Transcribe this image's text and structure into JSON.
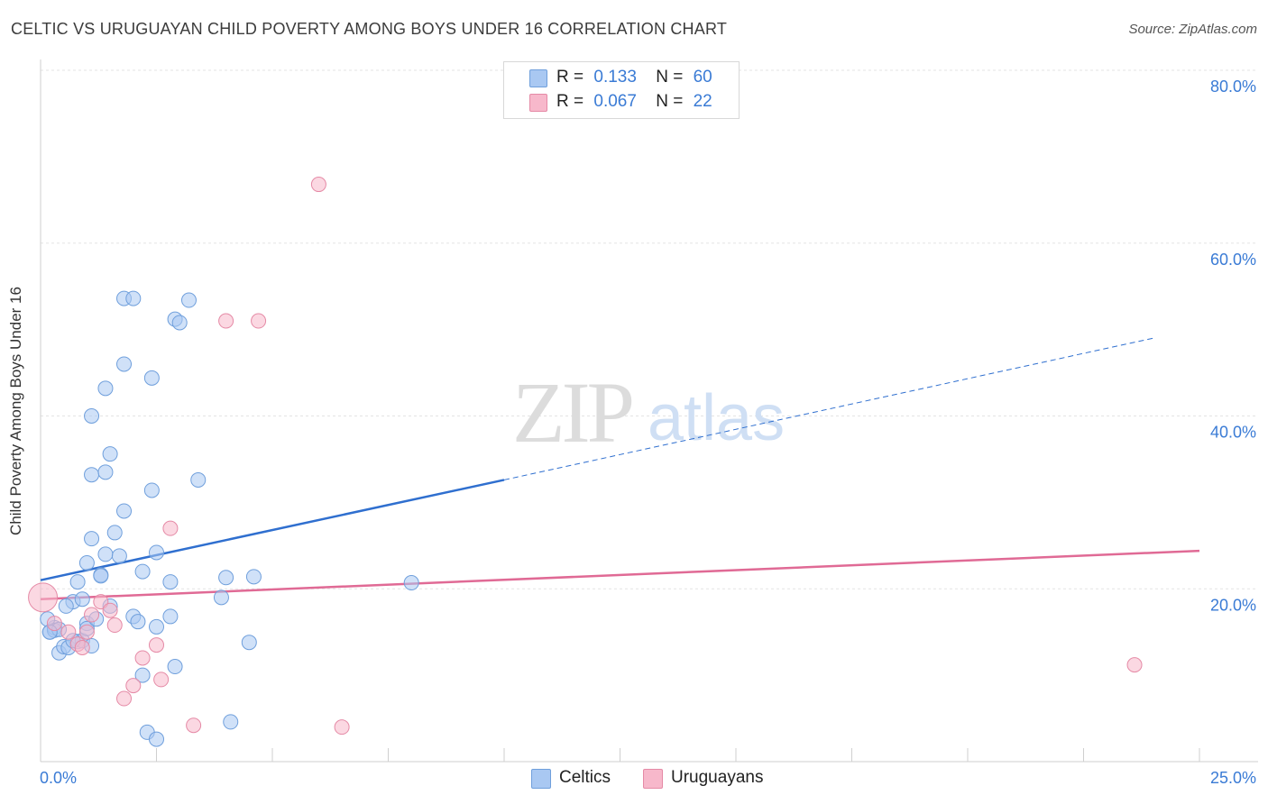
{
  "title": "CELTIC VS URUGUAYAN CHILD POVERTY AMONG BOYS UNDER 16 CORRELATION CHART",
  "source": "Source: ZipAtlas.com",
  "watermark": {
    "zip": "ZIP",
    "atlas": "atlas"
  },
  "legend": {
    "rows": [
      {
        "r_label": "R =",
        "r_value": "0.133",
        "n_label": "N =",
        "n_value": "60",
        "color": "#a9c8f2"
      },
      {
        "r_label": "R =",
        "r_value": "0.067",
        "n_label": "N =",
        "n_value": "22",
        "color": "#f7b8cb"
      }
    ]
  },
  "bottom_legend": [
    {
      "label": "Celtics",
      "color": "#a9c8f2"
    },
    {
      "label": "Uruguayans",
      "color": "#f7b8cb"
    }
  ],
  "chart_data": {
    "type": "scatter",
    "title": "CELTIC VS URUGUAYAN CHILD POVERTY AMONG BOYS UNDER 16 CORRELATION CHART",
    "xlabel": "",
    "ylabel": "Child Poverty Among Boys Under 16",
    "xlim": [
      0,
      25
    ],
    "ylim": [
      0,
      80
    ],
    "x_tick_labels": [
      "0.0%",
      "25.0%"
    ],
    "y_tick_labels": [
      "20.0%",
      "40.0%",
      "60.0%",
      "80.0%"
    ],
    "y_ticks": [
      20,
      40,
      60,
      80
    ],
    "grid": true,
    "series": [
      {
        "name": "Celtics",
        "color": "#a9c8f2",
        "stroke": "#6f9fdc",
        "r": 0.133,
        "n": 60,
        "trend": {
          "x_start": 0,
          "y_start": 21.0,
          "x_solid_end": 10.0,
          "y_solid_end": 32.6,
          "x_end": 24.0,
          "y_end": 49.0,
          "color": "#2f6fcf"
        },
        "points": [
          [
            0.2,
            15.0
          ],
          [
            0.3,
            15.5
          ],
          [
            0.3,
            15.2
          ],
          [
            0.4,
            12.6
          ],
          [
            0.5,
            13.3
          ],
          [
            0.4,
            15.3
          ],
          [
            0.6,
            13.2
          ],
          [
            0.7,
            18.5
          ],
          [
            0.8,
            13.9
          ],
          [
            0.9,
            14.0
          ],
          [
            1.0,
            16.0
          ],
          [
            1.0,
            15.4
          ],
          [
            1.1,
            13.4
          ],
          [
            1.2,
            16.5
          ],
          [
            0.9,
            18.8
          ],
          [
            1.3,
            21.6
          ],
          [
            0.8,
            20.8
          ],
          [
            1.0,
            23.0
          ],
          [
            1.1,
            25.8
          ],
          [
            1.3,
            21.5
          ],
          [
            1.4,
            24.0
          ],
          [
            1.5,
            18.0
          ],
          [
            1.6,
            26.5
          ],
          [
            1.7,
            23.8
          ],
          [
            1.8,
            29.0
          ],
          [
            1.1,
            33.2
          ],
          [
            1.4,
            33.5
          ],
          [
            1.5,
            35.6
          ],
          [
            1.1,
            40.0
          ],
          [
            1.4,
            43.2
          ],
          [
            1.8,
            46.0
          ],
          [
            2.4,
            44.4
          ],
          [
            1.8,
            53.6
          ],
          [
            2.0,
            53.6
          ],
          [
            2.9,
            51.2
          ],
          [
            3.0,
            50.8
          ],
          [
            3.2,
            53.4
          ],
          [
            2.2,
            22.0
          ],
          [
            2.4,
            31.4
          ],
          [
            2.5,
            24.2
          ],
          [
            2.0,
            16.8
          ],
          [
            2.1,
            16.2
          ],
          [
            2.5,
            15.6
          ],
          [
            2.8,
            16.8
          ],
          [
            2.8,
            20.8
          ],
          [
            2.2,
            10.0
          ],
          [
            2.9,
            11.0
          ],
          [
            2.3,
            3.4
          ],
          [
            2.5,
            2.6
          ],
          [
            3.4,
            32.6
          ],
          [
            3.9,
            19.0
          ],
          [
            4.0,
            21.3
          ],
          [
            4.1,
            4.6
          ],
          [
            4.5,
            13.8
          ],
          [
            4.6,
            21.4
          ],
          [
            8.0,
            20.7
          ],
          [
            0.15,
            16.5
          ],
          [
            0.2,
            15.0
          ],
          [
            0.55,
            18.0
          ],
          [
            0.7,
            14.0
          ]
        ]
      },
      {
        "name": "Uruguayans",
        "color": "#f7b8cb",
        "stroke": "#e58aa6",
        "r": 0.067,
        "n": 22,
        "trend": {
          "x_start": 0,
          "y_start": 18.8,
          "x_end": 25.0,
          "y_end": 24.4,
          "color": "#e06a95"
        },
        "points": [
          [
            0.05,
            19.0
          ],
          [
            0.3,
            16.0
          ],
          [
            0.6,
            15.0
          ],
          [
            0.8,
            13.6
          ],
          [
            0.9,
            13.2
          ],
          [
            1.0,
            15.0
          ],
          [
            1.1,
            17.0
          ],
          [
            1.3,
            18.5
          ],
          [
            1.5,
            17.5
          ],
          [
            1.6,
            15.8
          ],
          [
            1.8,
            7.3
          ],
          [
            2.0,
            8.8
          ],
          [
            2.2,
            12.0
          ],
          [
            2.5,
            13.5
          ],
          [
            2.6,
            9.5
          ],
          [
            2.8,
            27.0
          ],
          [
            3.3,
            4.2
          ],
          [
            4.0,
            51.0
          ],
          [
            4.7,
            51.0
          ],
          [
            6.0,
            66.8
          ],
          [
            6.5,
            4.0
          ],
          [
            23.6,
            11.2
          ]
        ]
      }
    ]
  }
}
